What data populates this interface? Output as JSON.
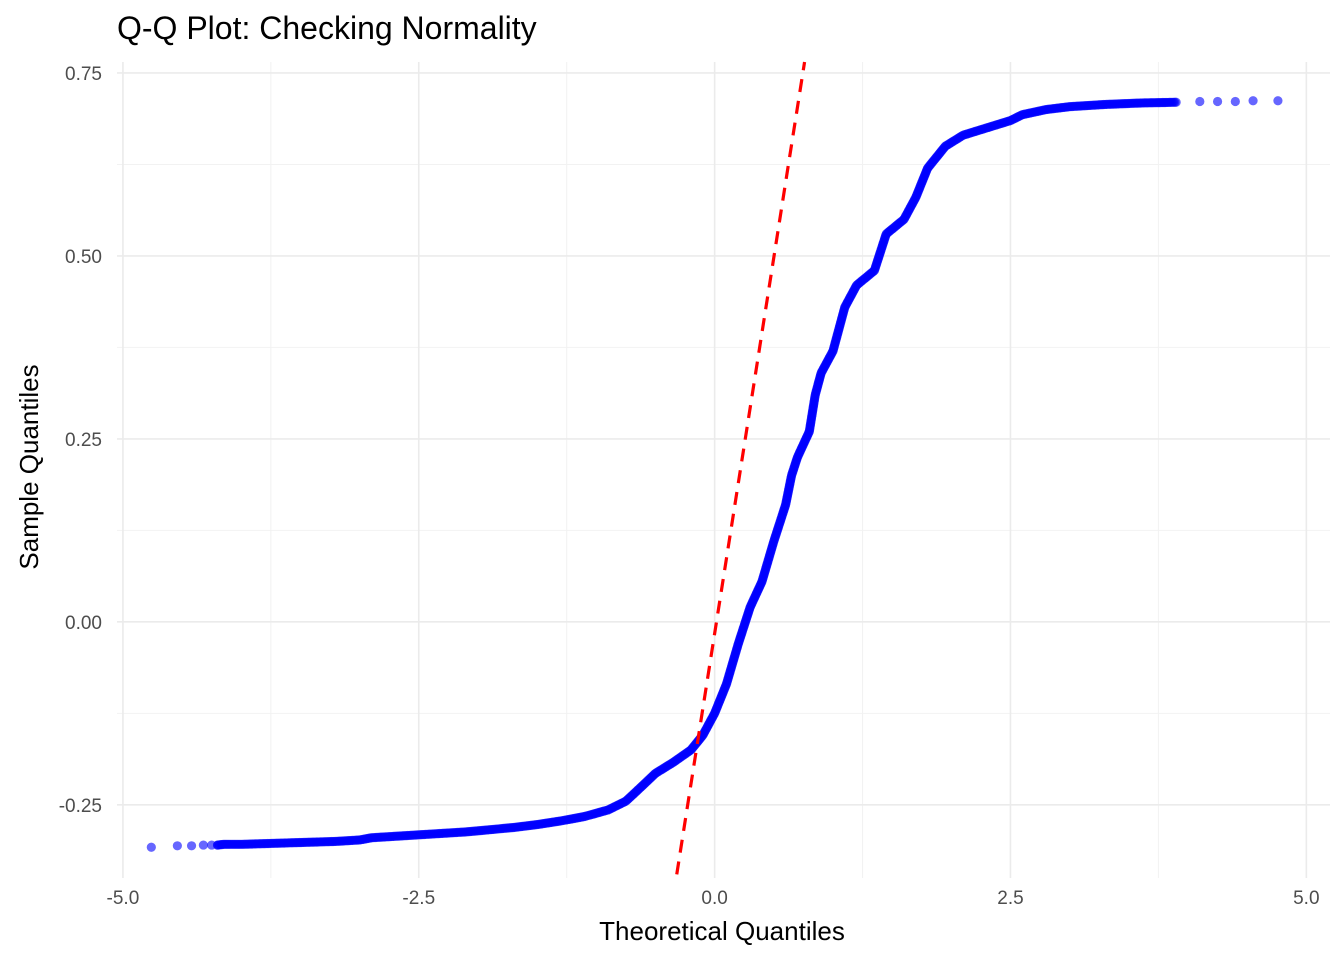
{
  "chart_data": {
    "type": "scatter",
    "title": "Q-Q Plot: Checking Normality",
    "xlabel": "Theoretical Quantiles",
    "ylabel": "Sample Quantiles",
    "xlim": [
      -5.05,
      5.2
    ],
    "ylim": [
      -0.35,
      0.765
    ],
    "x_ticks": [
      -5.0,
      -2.5,
      0.0,
      2.5,
      5.0
    ],
    "x_tick_labels": [
      "-5.0",
      "-2.5",
      "0.0",
      "2.5",
      "5.0"
    ],
    "y_ticks": [
      -0.25,
      0.0,
      0.25,
      0.5,
      0.75
    ],
    "y_tick_labels": [
      "-0.25",
      "0.00",
      "0.25",
      "0.50",
      "0.75"
    ],
    "grid": true,
    "point_color": "#0000ff",
    "reference_line_color": "#ff0000",
    "reference_line": {
      "style": "dashed",
      "points": [
        [
          -0.32,
          -0.345
        ],
        [
          0.76,
          0.765
        ]
      ]
    },
    "series": [
      {
        "points": [
          [
            -4.76,
            -0.308
          ],
          [
            -4.54,
            -0.306
          ],
          [
            -4.42,
            -0.306
          ],
          [
            -4.32,
            -0.305
          ],
          [
            -4.25,
            -0.305
          ],
          [
            -4.2,
            -0.305
          ],
          [
            -4.15,
            -0.304
          ],
          [
            -4.1,
            -0.304
          ],
          [
            -4.0,
            -0.304
          ],
          [
            -3.8,
            -0.303
          ],
          [
            -3.6,
            -0.302
          ],
          [
            -3.4,
            -0.301
          ],
          [
            -3.2,
            -0.3
          ],
          [
            -3.0,
            -0.298
          ],
          [
            -2.9,
            -0.295
          ],
          [
            -2.7,
            -0.293
          ],
          [
            -2.5,
            -0.291
          ],
          [
            -2.3,
            -0.289
          ],
          [
            -2.1,
            -0.287
          ],
          [
            -1.9,
            -0.284
          ],
          [
            -1.7,
            -0.281
          ],
          [
            -1.5,
            -0.277
          ],
          [
            -1.3,
            -0.272
          ],
          [
            -1.1,
            -0.266
          ],
          [
            -0.9,
            -0.257
          ],
          [
            -0.75,
            -0.245
          ],
          [
            -0.65,
            -0.23
          ],
          [
            -0.5,
            -0.207
          ],
          [
            -0.35,
            -0.192
          ],
          [
            -0.2,
            -0.175
          ],
          [
            -0.1,
            -0.155
          ],
          [
            0.0,
            -0.125
          ],
          [
            0.1,
            -0.085
          ],
          [
            0.2,
            -0.03
          ],
          [
            0.3,
            0.02
          ],
          [
            0.4,
            0.055
          ],
          [
            0.5,
            0.11
          ],
          [
            0.6,
            0.16
          ],
          [
            0.65,
            0.2
          ],
          [
            0.7,
            0.225
          ],
          [
            0.8,
            0.26
          ],
          [
            0.85,
            0.31
          ],
          [
            0.9,
            0.34
          ],
          [
            1.0,
            0.37
          ],
          [
            1.1,
            0.43
          ],
          [
            1.2,
            0.46
          ],
          [
            1.35,
            0.48
          ],
          [
            1.45,
            0.53
          ],
          [
            1.6,
            0.55
          ],
          [
            1.7,
            0.58
          ],
          [
            1.8,
            0.62
          ],
          [
            1.95,
            0.65
          ],
          [
            2.1,
            0.665
          ],
          [
            2.3,
            0.675
          ],
          [
            2.5,
            0.685
          ],
          [
            2.6,
            0.693
          ],
          [
            2.8,
            0.7
          ],
          [
            3.0,
            0.704
          ],
          [
            3.3,
            0.707
          ],
          [
            3.6,
            0.709
          ],
          [
            3.9,
            0.71
          ],
          [
            4.1,
            0.711
          ],
          [
            4.25,
            0.711
          ],
          [
            4.4,
            0.711
          ],
          [
            4.55,
            0.712
          ],
          [
            4.76,
            0.712
          ]
        ]
      }
    ]
  }
}
